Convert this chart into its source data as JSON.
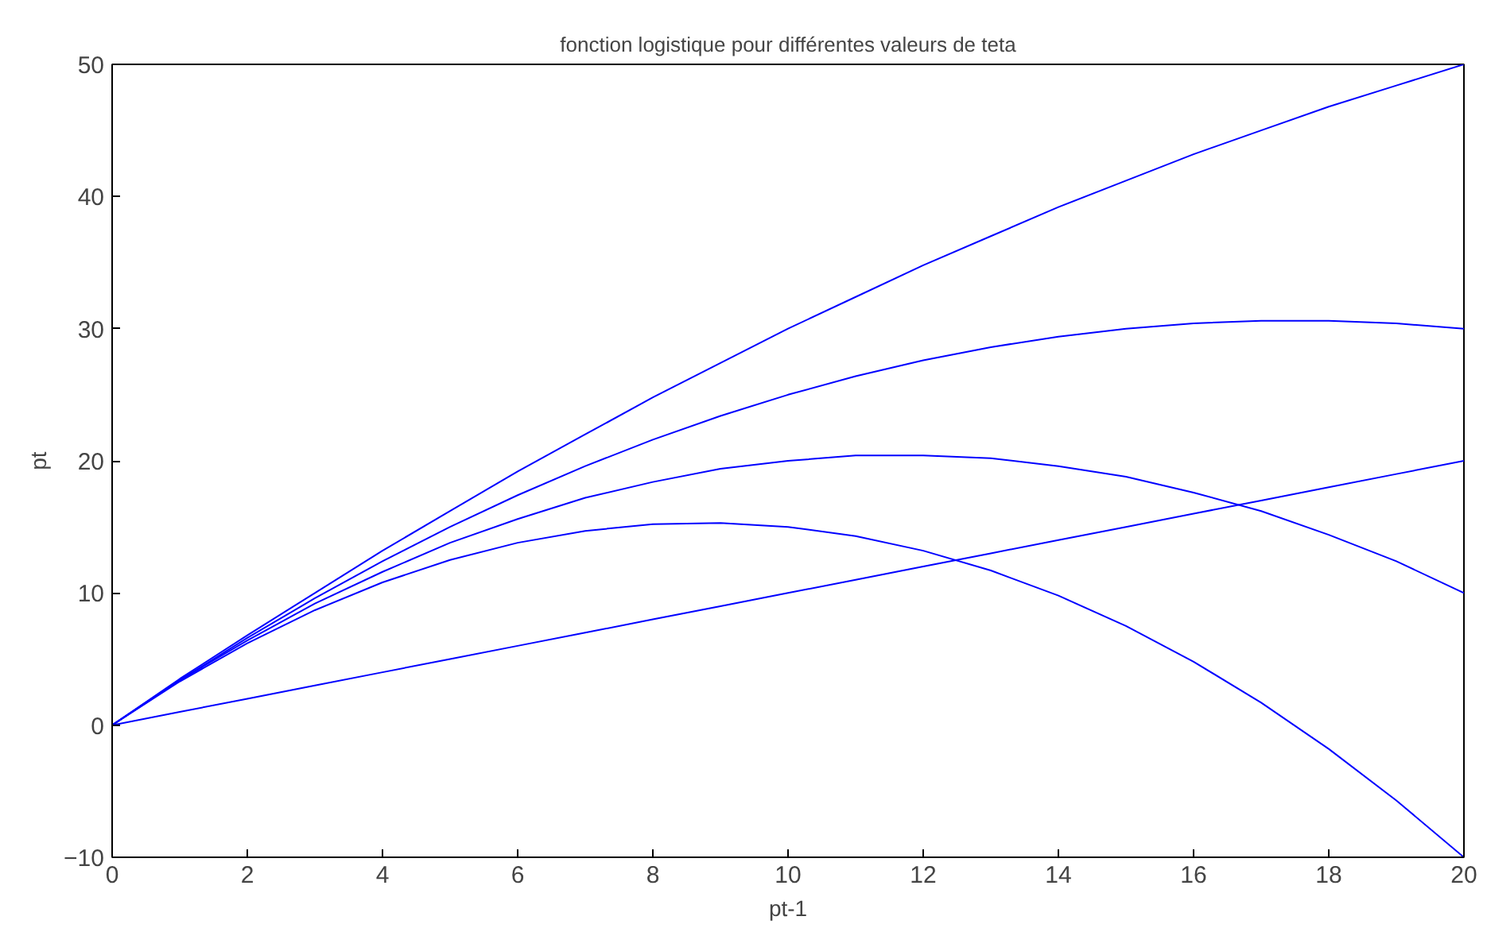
{
  "chart_data": {
    "type": "line",
    "title": "fonction logistique pour différentes valeurs de teta",
    "xlabel": "pt-1",
    "ylabel": "pt",
    "x": [
      0,
      1,
      2,
      3,
      4,
      5,
      6,
      7,
      8,
      9,
      10,
      11,
      12,
      13,
      14,
      15,
      16,
      17,
      18,
      19,
      20
    ],
    "series": [
      {
        "color": "#0000ff",
        "values": [
          0,
          3.3,
          6.2,
          8.7,
          10.8,
          12.5,
          13.8,
          14.7,
          15.2,
          15.3,
          15,
          14.3,
          13.2,
          11.7,
          9.8,
          7.5,
          4.8,
          1.7,
          -1.8,
          -5.7,
          -10
        ]
      },
      {
        "color": "#0000ff",
        "values": [
          0,
          3.4,
          6.4,
          9.2,
          11.6,
          13.8,
          15.6,
          17.2,
          18.4,
          19.4,
          20,
          20.4,
          20.4,
          20.2,
          19.6,
          18.8,
          17.6,
          16.2,
          14.4,
          12.4,
          10
        ]
      },
      {
        "color": "#0000ff",
        "values": [
          0,
          3.4,
          6.6,
          9.6,
          12.4,
          15,
          17.4,
          19.6,
          21.6,
          23.4,
          25,
          26.4,
          27.6,
          28.6,
          29.4,
          30,
          30.4,
          30.6,
          30.6,
          30.4,
          30
        ]
      },
      {
        "color": "#0000ff",
        "values": [
          0,
          3.5,
          6.8,
          10,
          13.2,
          16.2,
          19.2,
          22,
          24.8,
          27.4,
          30,
          32.4,
          34.8,
          37,
          39.2,
          41.2,
          43.2,
          45,
          46.8,
          48.4,
          50
        ]
      },
      {
        "color": "#0000ff",
        "values": [
          0,
          1,
          2,
          3,
          4,
          5,
          6,
          7,
          8,
          9,
          10,
          11,
          12,
          13,
          14,
          15,
          16,
          17,
          18,
          19,
          20
        ]
      }
    ],
    "xlim": [
      0,
      20
    ],
    "ylim": [
      -10,
      50
    ],
    "xticks": [
      0,
      2,
      4,
      6,
      8,
      10,
      12,
      14,
      16,
      18,
      20
    ],
    "yticks": [
      -10,
      0,
      10,
      20,
      30,
      40,
      50
    ],
    "grid": false,
    "marker": "none",
    "line_style": "solid"
  }
}
